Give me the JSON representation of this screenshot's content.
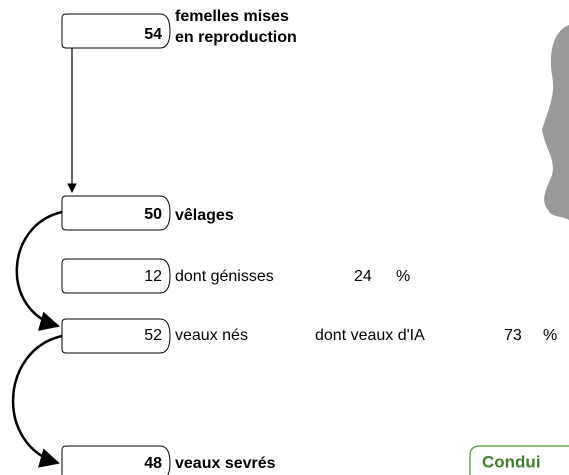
{
  "boxes": [
    {
      "value": "54",
      "label": [
        "femelles mises",
        "en reproduction"
      ]
    },
    {
      "value": "50",
      "label": "vêlages"
    },
    {
      "value": "12",
      "label": "dont génisses",
      "percent": "24",
      "unit": "%"
    },
    {
      "value": "52",
      "label": "veaux nés",
      "sublabel": "dont veaux d'IA",
      "percent": "73",
      "unit": "%"
    },
    {
      "value": "48",
      "label": "veaux sevrés"
    }
  ],
  "footer": {
    "title": "Condui"
  }
}
